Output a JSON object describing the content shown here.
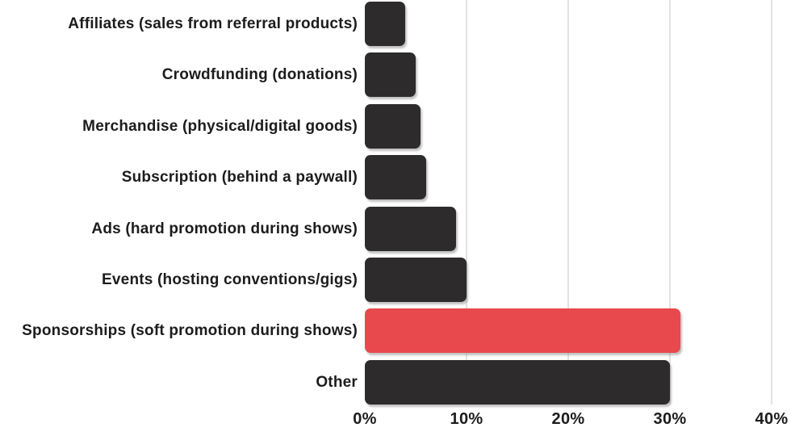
{
  "chart_data": {
    "type": "bar",
    "orientation": "horizontal",
    "title": "",
    "categories": [
      "Affiliates (sales from referral products)",
      "Crowdfunding (donations)",
      "Merchandise (physical/digital goods)",
      "Subscription (behind a paywall)",
      "Ads (hard promotion during shows)",
      "Events (hosting conventions/gigs)",
      "Sponsorships (soft promotion during shows)",
      "Other"
    ],
    "values": [
      4,
      5,
      5.5,
      6,
      9,
      10,
      31,
      30
    ],
    "unit": "%",
    "xlim": [
      0,
      40
    ],
    "x_ticks": [
      0,
      10,
      20,
      30,
      40
    ],
    "x_tick_labels": [
      "0%",
      "10%",
      "20%",
      "30%",
      "40%"
    ],
    "grid": "vertical-only",
    "legend": "none",
    "highlight_index": 6,
    "bar_color": "#2d2b2c",
    "highlight_color": "#e8494d",
    "gridline_color": "#e2e2e2",
    "text_color": "#1c1c1c"
  }
}
